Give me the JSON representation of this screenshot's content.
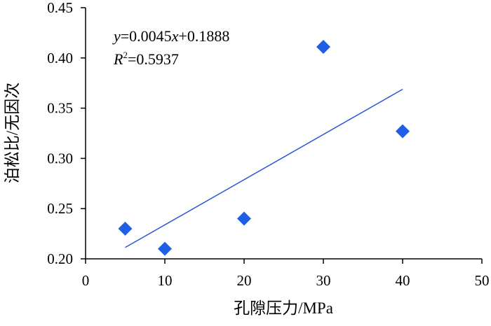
{
  "chart_data": {
    "type": "scatter",
    "xlabel": "孔隙压力/MPa",
    "ylabel": "泊松比/无因次",
    "xlim": [
      0,
      50
    ],
    "ylim": [
      0.2,
      0.45
    ],
    "x_ticks": [
      0,
      10,
      20,
      30,
      40,
      50
    ],
    "y_ticks": [
      0.2,
      0.25,
      0.3,
      0.35,
      0.4,
      0.45
    ],
    "x_tick_labels": [
      "0",
      "10",
      "20",
      "30",
      "40",
      "50"
    ],
    "y_tick_labels": [
      "0.20",
      "0.25",
      "0.30",
      "0.35",
      "0.40",
      "0.45"
    ],
    "grid": false,
    "marker": "diamond",
    "series": [
      {
        "points": [
          {
            "x": 5,
            "y": 0.23
          },
          {
            "x": 10,
            "y": 0.21
          },
          {
            "x": 20,
            "y": 0.24
          },
          {
            "x": 30,
            "y": 0.411
          },
          {
            "x": 40,
            "y": 0.327
          }
        ]
      }
    ],
    "trendline": {
      "slope": 0.0045,
      "intercept": 0.1888,
      "x_range": [
        5,
        40
      ],
      "equation": {
        "y_var": "y",
        "mid": "=0.0045",
        "x_var": "x",
        "tail": "+0.1888"
      },
      "r2": {
        "var": "R",
        "sup": "2",
        "value": "=0.5937"
      }
    },
    "colors": {
      "marker": "#1f5fe6",
      "trendline": "#2a58d8",
      "axis": "#000000"
    }
  }
}
